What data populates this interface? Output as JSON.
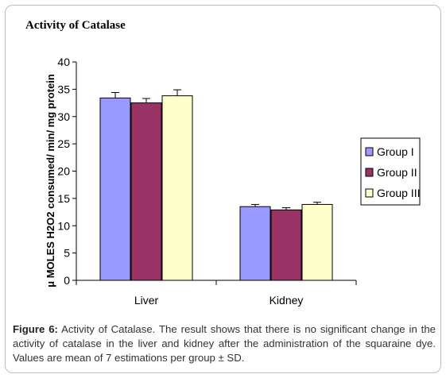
{
  "chart_data": {
    "type": "bar",
    "title": "Activity of Catalase",
    "ylabel": "μ MOLES H2O2 consumed/ min/ mg protein",
    "xlabel": "",
    "ylim": [
      0,
      40
    ],
    "yticks": [
      0,
      5,
      10,
      15,
      20,
      25,
      30,
      35,
      40
    ],
    "categories": [
      "Liver",
      "Kidney"
    ],
    "series": [
      {
        "name": "Group I",
        "color": "#9999ff",
        "values": [
          33.4,
          13.5
        ],
        "errors": [
          1.0,
          0.4
        ]
      },
      {
        "name": "Group II",
        "color": "#993366",
        "values": [
          32.5,
          12.9
        ],
        "errors": [
          0.8,
          0.4
        ]
      },
      {
        "name": "Group III",
        "color": "#ffffcc",
        "values": [
          33.8,
          13.9
        ],
        "errors": [
          1.1,
          0.4
        ]
      }
    ],
    "grid": false,
    "legend": "right"
  },
  "caption": {
    "label": "Figure 6:",
    "text": " Activity of Catalase. The result shows that there is no significant change in the activity of catalase in the liver and kidney after the administration of the squaraine dye. Values are mean of 7 estimations per group ± SD."
  }
}
